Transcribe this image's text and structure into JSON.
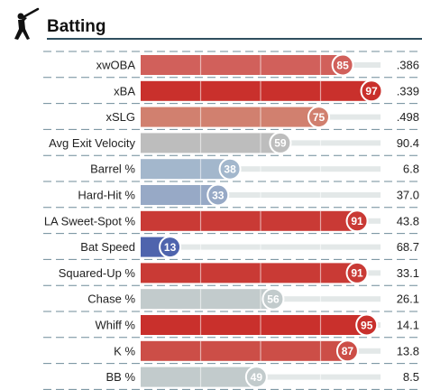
{
  "section": {
    "title": "Batting",
    "icon": "batter-silhouette-icon"
  },
  "chart_data": {
    "type": "bar",
    "xlim": [
      0,
      100
    ],
    "categories": [
      "xwOBA",
      "xBA",
      "xSLG",
      "Avg Exit Velocity",
      "Barrel %",
      "Hard-Hit %",
      "LA Sweet-Spot %",
      "Bat Speed",
      "Squared-Up %",
      "Chase %",
      "Whiff %",
      "K %",
      "BB %"
    ],
    "series": [
      {
        "values": [
          85,
          97,
          75,
          59,
          38,
          33,
          91,
          13,
          91,
          56,
          95,
          87,
          49
        ]
      }
    ],
    "stat_values": [
      ".386",
      ".339",
      ".498",
      "90.4",
      "6.8",
      "37.0",
      "43.8",
      "68.7",
      "33.1",
      "26.1",
      "14.1",
      "13.8",
      "8.5"
    ],
    "colors": {
      "xwOBA": "#d1605b",
      "xBA": "#c9302c",
      "xSLG": "#d1806f",
      "Avg Exit Velocity": "#bdbdbd",
      "Barrel %": "#a3b7cc",
      "Hard-Hit %": "#97a9c6",
      "LA Sweet-Spot %": "#c93a35",
      "Bat Speed": "#4f64ad",
      "Squared-Up %": "#c93a35",
      "Chase %": "#c2cbcc",
      "Whiff %": "#c9302c",
      "K %": "#cc4e47",
      "BB %": "#c2cbcc"
    },
    "track_color": "#e3e8e8",
    "grid_lines": true
  }
}
